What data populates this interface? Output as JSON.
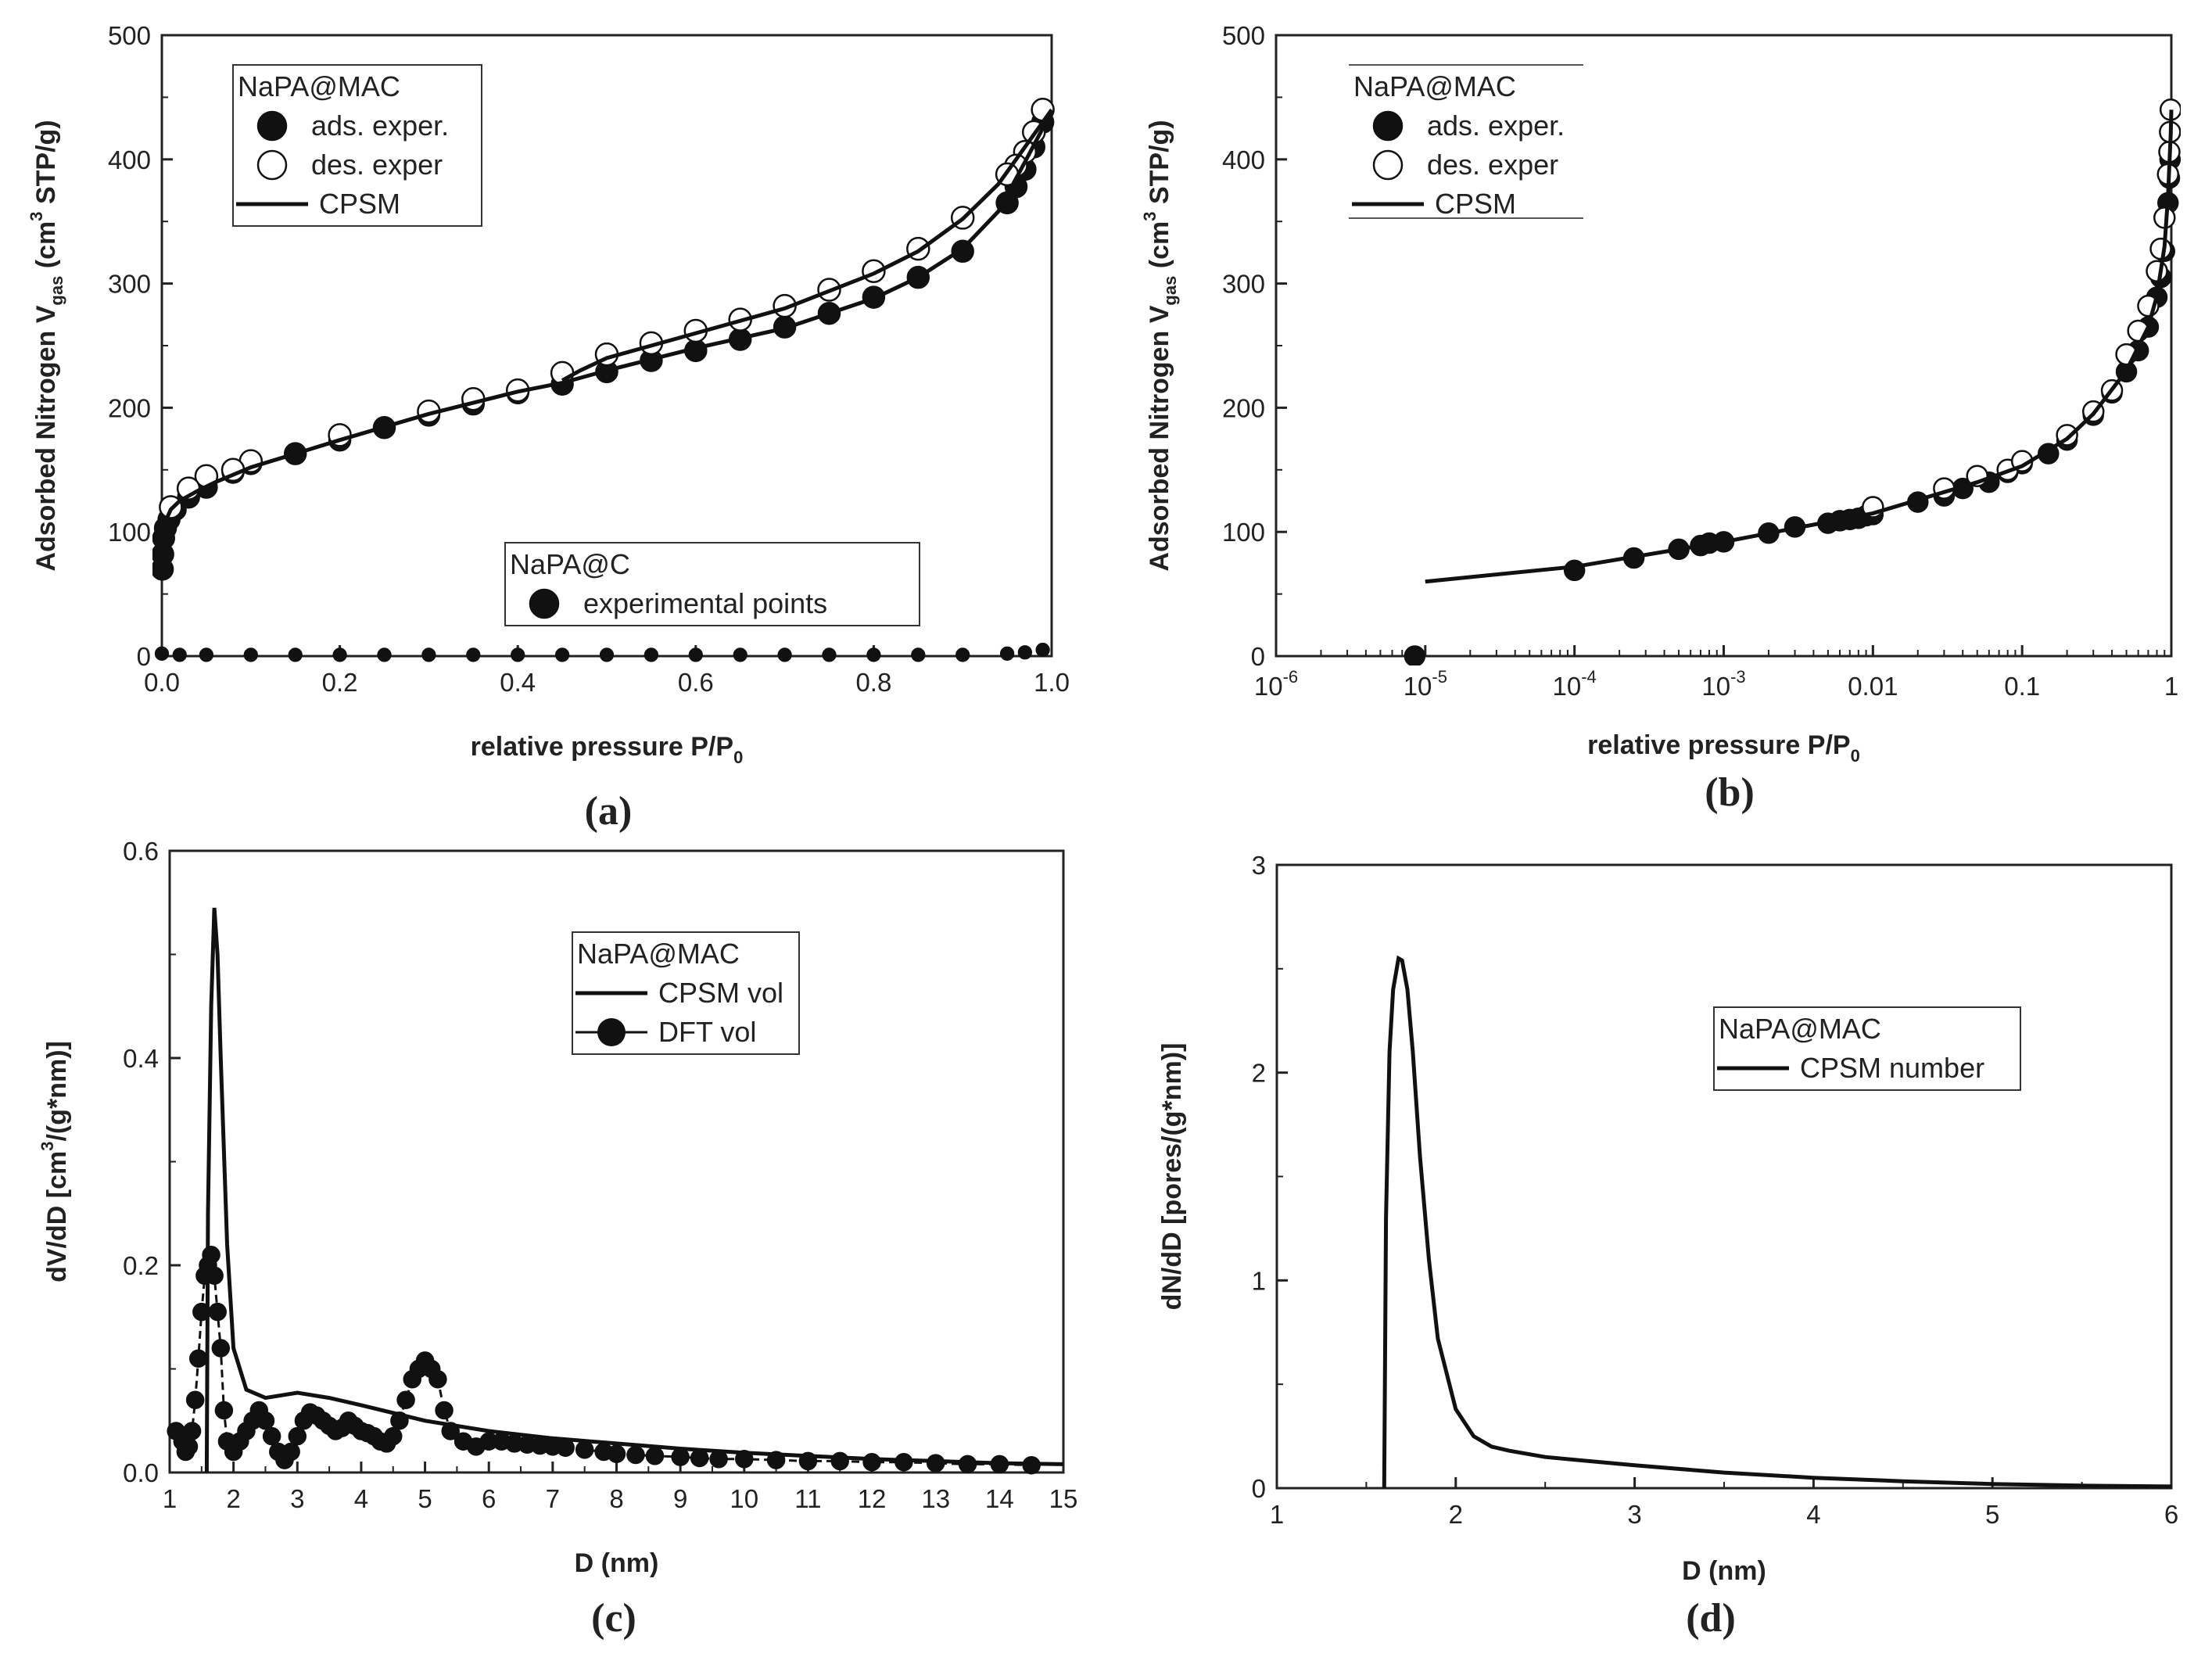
{
  "chart_data": [
    {
      "id": "a",
      "type": "scatter",
      "caption": "(a)",
      "xlabel": "relative pressure P/P",
      "xlabel_sub": "0",
      "ylabel_pre": "Adsorbed Nitrogen V",
      "ylabel_sub": "gas",
      "ylabel_post": " (cm",
      "ylabel_sup": "3",
      "ylabel_end": " STP/g)",
      "xlim": [
        0,
        1.0
      ],
      "ylim": [
        0,
        500
      ],
      "xticks": [
        "0.0",
        "0.2",
        "0.4",
        "0.6",
        "0.8",
        "1.0"
      ],
      "yticks": [
        "0",
        "100",
        "200",
        "300",
        "400",
        "500"
      ],
      "legend1": {
        "title": "NaPA@MAC",
        "items": [
          "ads. exper.",
          "des. exper",
          "CPSM"
        ]
      },
      "legend2": {
        "title": "NaPA@C",
        "items": [
          "experimental points"
        ]
      },
      "series": [
        {
          "name": "ads. exper.",
          "marker": "filled",
          "x": [
            0.0005,
            0.001,
            0.002,
            0.004,
            0.008,
            0.015,
            0.03,
            0.05,
            0.08,
            0.1,
            0.15,
            0.2,
            0.25,
            0.3,
            0.35,
            0.4,
            0.45,
            0.5,
            0.55,
            0.6,
            0.65,
            0.7,
            0.75,
            0.8,
            0.85,
            0.9,
            0.95,
            0.96,
            0.97,
            0.98,
            0.99
          ],
          "y": [
            70,
            82,
            95,
            103,
            110,
            118,
            128,
            136,
            148,
            155,
            163,
            174,
            184,
            194,
            203,
            212,
            219,
            229,
            238,
            246,
            255,
            265,
            276,
            289,
            305,
            326,
            365,
            378,
            392,
            410,
            430
          ]
        },
        {
          "name": "des. exper",
          "marker": "open",
          "x": [
            0.99,
            0.98,
            0.97,
            0.96,
            0.95,
            0.9,
            0.85,
            0.8,
            0.75,
            0.7,
            0.65,
            0.6,
            0.55,
            0.5,
            0.45,
            0.4,
            0.35,
            0.3,
            0.2,
            0.1,
            0.08,
            0.05,
            0.03,
            0.01
          ],
          "y": [
            440,
            422,
            406,
            395,
            388,
            353,
            328,
            310,
            295,
            282,
            271,
            262,
            252,
            243,
            228,
            214,
            207,
            197,
            178,
            157,
            150,
            145,
            135,
            120
          ]
        },
        {
          "name": "CPSM ads",
          "marker": "line",
          "x": [
            0.0,
            0.002,
            0.005,
            0.01,
            0.02,
            0.04,
            0.06,
            0.1,
            0.15,
            0.2,
            0.3,
            0.4,
            0.45,
            0.5,
            0.6,
            0.7,
            0.8,
            0.85,
            0.9,
            0.94,
            0.97,
            0.99,
            1.0
          ],
          "y": [
            80,
            100,
            110,
            118,
            125,
            133,
            140,
            152,
            163,
            174,
            195,
            213,
            220,
            230,
            248,
            264,
            288,
            305,
            328,
            358,
            398,
            425,
            440
          ]
        },
        {
          "name": "CPSM des",
          "marker": "line",
          "x": [
            1.0,
            0.97,
            0.94,
            0.9,
            0.85,
            0.8,
            0.7,
            0.6,
            0.55,
            0.5,
            0.47,
            0.45
          ],
          "y": [
            440,
            410,
            380,
            352,
            326,
            308,
            280,
            260,
            250,
            240,
            230,
            222
          ]
        },
        {
          "name": "experimental points",
          "marker": "filled-small",
          "x": [
            0.0,
            0.02,
            0.05,
            0.1,
            0.15,
            0.2,
            0.25,
            0.3,
            0.35,
            0.4,
            0.45,
            0.5,
            0.55,
            0.6,
            0.65,
            0.7,
            0.75,
            0.8,
            0.85,
            0.9,
            0.95,
            0.97,
            0.99
          ],
          "y": [
            2,
            1,
            1,
            1,
            1,
            1,
            1,
            1,
            1,
            1,
            1,
            1,
            1,
            1,
            1,
            1,
            1,
            1,
            1,
            1,
            2,
            3,
            5
          ]
        }
      ]
    },
    {
      "id": "b",
      "type": "scatter",
      "caption": "(b)",
      "xscale": "log",
      "xlabel": "relative pressure P/P",
      "xlabel_sub": "0",
      "ylabel_pre": "Adsorbed Nitrogen V",
      "ylabel_sub": "gas",
      "ylabel_post": " (cm",
      "ylabel_sup": "3",
      "ylabel_end": " STP/g)",
      "xlim": [
        1e-06,
        1
      ],
      "ylim": [
        0,
        500
      ],
      "xticks": [
        {
          "v": 1e-06,
          "base": "10",
          "exp": "-6"
        },
        {
          "v": 1e-05,
          "base": "10",
          "exp": "-5"
        },
        {
          "v": 0.0001,
          "base": "10",
          "exp": "-4"
        },
        {
          "v": 0.001,
          "base": "10",
          "exp": "-3"
        },
        {
          "v": 0.01,
          "base": "0.01",
          "exp": ""
        },
        {
          "v": 0.1,
          "base": "0.1",
          "exp": ""
        },
        {
          "v": 1,
          "base": "1",
          "exp": ""
        }
      ],
      "yticks": [
        "0",
        "100",
        "200",
        "300",
        "400",
        "500"
      ],
      "legend": {
        "title": "NaPA@MAC",
        "items": [
          "ads. exper.",
          "des. exper",
          "CPSM"
        ]
      },
      "series": [
        {
          "name": "ads. exper.",
          "marker": "filled",
          "x": [
            8.5e-06,
            0.0001,
            0.00025,
            0.0005,
            0.0007,
            0.0008,
            0.001,
            0.002,
            0.003,
            0.005,
            0.006,
            0.007,
            0.008,
            0.009,
            0.01,
            0.02,
            0.03,
            0.04,
            0.06,
            0.08,
            0.1,
            0.15,
            0.2,
            0.3,
            0.4,
            0.5,
            0.6,
            0.7,
            0.8,
            0.85,
            0.9,
            0.95,
            0.97,
            0.98
          ],
          "y": [
            0,
            69,
            79,
            86,
            89,
            91,
            92,
            99,
            104,
            107,
            109,
            110,
            111,
            113,
            114,
            124,
            129,
            135,
            140,
            148,
            155,
            163,
            174,
            194,
            212,
            229,
            246,
            265,
            289,
            305,
            326,
            365,
            385,
            400
          ]
        },
        {
          "name": "des. exper",
          "marker": "open",
          "x": [
            0.01,
            0.03,
            0.05,
            0.08,
            0.1,
            0.2,
            0.3,
            0.4,
            0.5,
            0.6,
            0.7,
            0.8,
            0.85,
            0.9,
            0.95,
            0.97,
            0.98,
            0.99
          ],
          "y": [
            120,
            135,
            145,
            150,
            157,
            178,
            197,
            214,
            243,
            262,
            282,
            310,
            328,
            353,
            388,
            406,
            422,
            440
          ]
        },
        {
          "name": "CPSM",
          "marker": "line",
          "x": [
            1e-05,
            0.0001,
            0.001,
            0.01,
            0.05,
            0.1,
            0.2,
            0.3,
            0.5,
            0.7,
            0.8,
            0.9,
            0.95,
            0.99,
            1.0
          ],
          "y": [
            60,
            72,
            92,
            115,
            140,
            153,
            175,
            195,
            230,
            265,
            290,
            330,
            370,
            420,
            440
          ]
        }
      ]
    },
    {
      "id": "c",
      "type": "line",
      "caption": "(c)",
      "xlabel": "D (nm)",
      "ylabel_pre": "dV/dD [cm",
      "ylabel_sup": "3",
      "ylabel_end": "/(g*nm)]",
      "xlim": [
        1,
        15
      ],
      "ylim": [
        0,
        0.6
      ],
      "xticks": [
        "1",
        "2",
        "3",
        "4",
        "5",
        "6",
        "7",
        "8",
        "9",
        "10",
        "11",
        "12",
        "13",
        "14",
        "15"
      ],
      "yticks": [
        "0.0",
        "0.2",
        "0.4",
        "0.6"
      ],
      "legend": {
        "title": "NaPA@MAC",
        "items": [
          "CPSM vol",
          "DFT vol"
        ]
      },
      "series": [
        {
          "name": "CPSM vol",
          "marker": "line",
          "x": [
            1.58,
            1.6,
            1.65,
            1.7,
            1.75,
            1.8,
            1.9,
            2.0,
            2.2,
            2.5,
            3.0,
            3.5,
            4.0,
            5.0,
            6.0,
            7.0,
            8.0,
            9.0,
            10.0,
            11.0,
            12.0,
            13.0,
            14.0,
            15.0
          ],
          "y": [
            0,
            0.25,
            0.45,
            0.545,
            0.5,
            0.4,
            0.22,
            0.12,
            0.08,
            0.072,
            0.077,
            0.072,
            0.065,
            0.05,
            0.04,
            0.033,
            0.028,
            0.023,
            0.019,
            0.016,
            0.013,
            0.011,
            0.009,
            0.008
          ]
        },
        {
          "name": "DFT vol",
          "marker": "filled-line",
          "x": [
            1.1,
            1.2,
            1.25,
            1.3,
            1.35,
            1.4,
            1.45,
            1.5,
            1.55,
            1.6,
            1.65,
            1.7,
            1.75,
            1.8,
            1.85,
            1.9,
            2.0,
            2.1,
            2.2,
            2.3,
            2.4,
            2.5,
            2.6,
            2.7,
            2.8,
            2.9,
            3.0,
            3.1,
            3.2,
            3.3,
            3.4,
            3.5,
            3.6,
            3.7,
            3.8,
            3.9,
            4.0,
            4.1,
            4.2,
            4.3,
            4.4,
            4.5,
            4.6,
            4.7,
            4.8,
            4.9,
            5.0,
            5.1,
            5.2,
            5.3,
            5.4,
            5.6,
            5.8,
            6.0,
            6.2,
            6.4,
            6.6,
            6.8,
            7.0,
            7.2,
            7.5,
            7.8,
            8.0,
            8.3,
            8.6,
            9.0,
            9.3,
            9.6,
            10.0,
            10.5,
            11.0,
            11.5,
            12.0,
            12.5,
            13.0,
            13.5,
            14.0,
            14.5
          ],
          "y": [
            0.04,
            0.03,
            0.02,
            0.025,
            0.04,
            0.07,
            0.11,
            0.155,
            0.19,
            0.2,
            0.21,
            0.19,
            0.155,
            0.12,
            0.06,
            0.03,
            0.02,
            0.03,
            0.04,
            0.05,
            0.06,
            0.05,
            0.035,
            0.02,
            0.012,
            0.02,
            0.035,
            0.05,
            0.058,
            0.055,
            0.05,
            0.045,
            0.04,
            0.043,
            0.05,
            0.045,
            0.04,
            0.038,
            0.035,
            0.03,
            0.028,
            0.035,
            0.05,
            0.07,
            0.09,
            0.1,
            0.108,
            0.1,
            0.09,
            0.06,
            0.04,
            0.03,
            0.025,
            0.03,
            0.03,
            0.028,
            0.027,
            0.026,
            0.025,
            0.024,
            0.022,
            0.02,
            0.018,
            0.017,
            0.016,
            0.015,
            0.014,
            0.013,
            0.013,
            0.012,
            0.011,
            0.011,
            0.01,
            0.01,
            0.009,
            0.008,
            0.008,
            0.007
          ]
        }
      ]
    },
    {
      "id": "d",
      "type": "line",
      "caption": "(d)",
      "xlabel": "D (nm)",
      "ylabel_pre": "dN/dD [pores/(g*nm)]",
      "xlim": [
        1,
        6
      ],
      "ylim": [
        0,
        3
      ],
      "xticks": [
        "1",
        "2",
        "3",
        "4",
        "5",
        "6"
      ],
      "yticks": [
        "0",
        "1",
        "2",
        "3"
      ],
      "legend": {
        "title": "NaPA@MAC",
        "items": [
          "CPSM number"
        ]
      },
      "series": [
        {
          "name": "CPSM number",
          "marker": "line",
          "x": [
            1.6,
            1.61,
            1.63,
            1.65,
            1.68,
            1.7,
            1.73,
            1.76,
            1.8,
            1.85,
            1.9,
            2.0,
            2.1,
            2.2,
            2.3,
            2.5,
            3.0,
            3.5,
            4.0,
            4.5,
            5.0,
            5.5,
            6.0
          ],
          "y": [
            0,
            1.3,
            2.1,
            2.4,
            2.55,
            2.54,
            2.4,
            2.1,
            1.6,
            1.1,
            0.72,
            0.38,
            0.25,
            0.2,
            0.18,
            0.15,
            0.11,
            0.075,
            0.05,
            0.033,
            0.02,
            0.012,
            0.008
          ]
        }
      ]
    }
  ]
}
